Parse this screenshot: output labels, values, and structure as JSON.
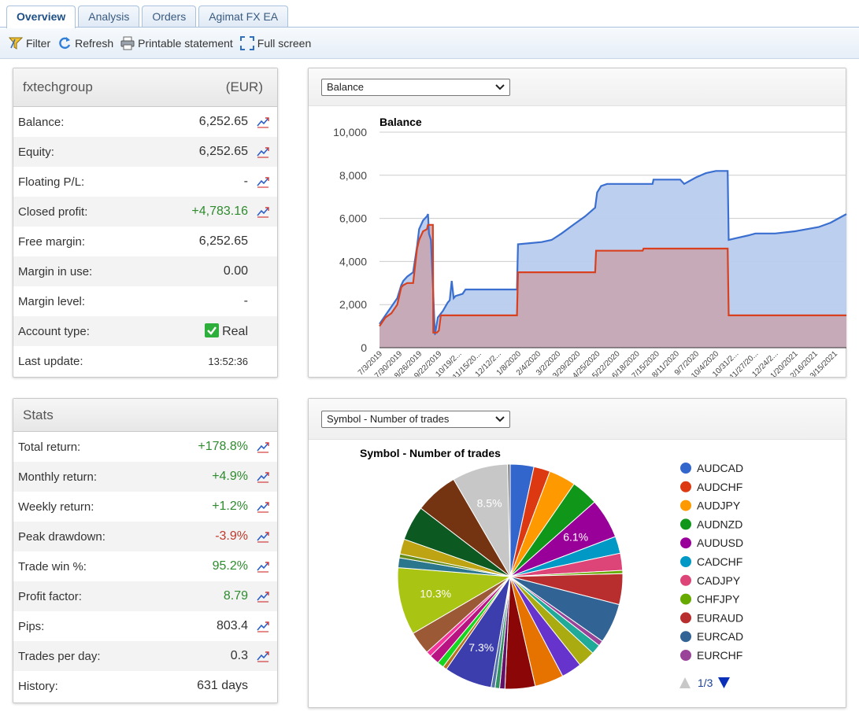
{
  "tabs": [
    "Overview",
    "Analysis",
    "Orders",
    "Agimat FX EA"
  ],
  "toolbar": {
    "filter": "Filter",
    "refresh": "Refresh",
    "print": "Printable statement",
    "fullscreen": "Full screen"
  },
  "account": {
    "name": "fxtechgroup",
    "currency": "(EUR)",
    "rows": [
      {
        "label": "Balance:",
        "value": "6,252.65"
      },
      {
        "label": "Equity:",
        "value": "6,252.65"
      },
      {
        "label": "Floating P/L:",
        "value": "-"
      },
      {
        "label": "Closed profit:",
        "value": "+4,783.16"
      },
      {
        "label": "Free margin:",
        "value": "6,252.65"
      },
      {
        "label": "Margin in use:",
        "value": "0.00"
      },
      {
        "label": "Margin level:",
        "value": "-"
      },
      {
        "label": "Account type:",
        "value": "Real"
      },
      {
        "label": "Last update:",
        "value": "13:52:36"
      }
    ]
  },
  "stats": {
    "title": "Stats",
    "rows": [
      {
        "label": "Total return:",
        "value": "+178.8%"
      },
      {
        "label": "Monthly return:",
        "value": "+4.9%"
      },
      {
        "label": "Weekly return:",
        "value": "+1.2%"
      },
      {
        "label": "Peak drawdown:",
        "value": "-3.9%"
      },
      {
        "label": "Trade win %:",
        "value": "95.2%"
      },
      {
        "label": "Profit factor:",
        "value": "8.79"
      },
      {
        "label": "Pips:",
        "value": "803.4"
      },
      {
        "label": "Trades per day:",
        "value": "0.3"
      },
      {
        "label": "History:",
        "value": "631 days"
      }
    ]
  },
  "balance_select": "Balance",
  "pie_select": "Symbol - Number of trades",
  "pager": "1/3",
  "colors": {
    "balance_line": "#3a6fd0",
    "balance_fill": "#b9ccee",
    "profit_line": "#d9401f",
    "profit_fill": "#c9a3ad",
    "positive": "#2e8b2e",
    "negative": "#c0392b"
  },
  "chart_data": [
    {
      "type": "area",
      "title": "Balance",
      "ylim": [
        0,
        10000
      ],
      "yticks": [
        "0",
        "2,000",
        "4,000",
        "6,000",
        "8,000",
        "10,000"
      ],
      "x_tick_labels": [
        "7/3/2019",
        "7/30/2019",
        "8/26/2019",
        "9/22/2019",
        "10/19/2...",
        "11/15/20...",
        "12/12/2...",
        "1/8/2020",
        "2/4/2020",
        "3/2/2020",
        "3/29/2020",
        "4/25/2020",
        "5/22/2020",
        "6/18/2020",
        "7/15/2020",
        "8/11/2020",
        "9/7/2020",
        "10/4/2020",
        "10/31/2...",
        "11/27/20...",
        "12/24/2...",
        "1/20/2021",
        "2/16/2021",
        "3/15/2021"
      ],
      "series": [
        {
          "values": [
            [
              0,
              1100
            ],
            [
              0.3,
              1500
            ],
            [
              0.6,
              1900
            ],
            [
              0.9,
              2300
            ],
            [
              1.1,
              2900
            ],
            [
              1.2,
              3100
            ],
            [
              1.4,
              3300
            ],
            [
              1.7,
              3500
            ],
            [
              1.9,
              4700
            ],
            [
              2.0,
              5500
            ],
            [
              2.2,
              5900
            ],
            [
              2.4,
              6100
            ],
            [
              2.45,
              6200
            ],
            [
              2.5,
              5300
            ],
            [
              2.6,
              5000
            ],
            [
              2.7,
              2900
            ],
            [
              2.8,
              600
            ],
            [
              2.95,
              1400
            ],
            [
              3.2,
              1700
            ],
            [
              3.45,
              2100
            ],
            [
              3.55,
              2200
            ],
            [
              3.65,
              3100
            ],
            [
              3.75,
              2300
            ],
            [
              3.85,
              2400
            ],
            [
              4.2,
              2500
            ],
            [
              4.35,
              2700
            ],
            [
              5.0,
              2700
            ],
            [
              6.0,
              2700
            ],
            [
              6.95,
              2700
            ],
            [
              7.0,
              4800
            ],
            [
              7.6,
              4850
            ],
            [
              8.2,
              4900
            ],
            [
              8.7,
              5000
            ],
            [
              9.2,
              5300
            ],
            [
              9.8,
              5700
            ],
            [
              10.4,
              6100
            ],
            [
              10.9,
              6500
            ],
            [
              11.0,
              7200
            ],
            [
              11.2,
              7500
            ],
            [
              11.5,
              7600
            ],
            [
              12.0,
              7600
            ],
            [
              13.0,
              7600
            ],
            [
              13.8,
              7600
            ],
            [
              13.85,
              7800
            ],
            [
              14.5,
              7800
            ],
            [
              15.2,
              7800
            ],
            [
              15.4,
              7600
            ],
            [
              15.6,
              7700
            ],
            [
              16.0,
              7900
            ],
            [
              16.5,
              8100
            ],
            [
              17.0,
              8200
            ],
            [
              17.6,
              8200
            ],
            [
              17.65,
              5000
            ],
            [
              18.1,
              5100
            ],
            [
              18.6,
              5200
            ],
            [
              19.0,
              5300
            ],
            [
              20.0,
              5300
            ],
            [
              21.0,
              5400
            ],
            [
              21.6,
              5500
            ],
            [
              22.2,
              5600
            ],
            [
              22.8,
              5800
            ],
            [
              23.2,
              6000
            ],
            [
              23.6,
              6200
            ]
          ]
        },
        {
          "values": [
            [
              0,
              1000
            ],
            [
              0.3,
              1400
            ],
            [
              0.6,
              1600
            ],
            [
              0.9,
              2000
            ],
            [
              1.1,
              2800
            ],
            [
              1.2,
              2900
            ],
            [
              1.4,
              3000
            ],
            [
              1.7,
              3000
            ],
            [
              1.9,
              4600
            ],
            [
              2.0,
              5000
            ],
            [
              2.2,
              5400
            ],
            [
              2.4,
              5500
            ],
            [
              2.45,
              5700
            ],
            [
              2.7,
              5700
            ],
            [
              2.72,
              700
            ],
            [
              2.9,
              700
            ],
            [
              3.0,
              800
            ],
            [
              3.1,
              1500
            ],
            [
              4.0,
              1500
            ],
            [
              5.0,
              1500
            ],
            [
              6.95,
              1500
            ],
            [
              7.0,
              3500
            ],
            [
              8.5,
              3500
            ],
            [
              9.9,
              3500
            ],
            [
              10.9,
              3500
            ],
            [
              10.95,
              4500
            ],
            [
              12.0,
              4500
            ],
            [
              13.3,
              4500
            ],
            [
              13.35,
              4600
            ],
            [
              14.5,
              4600
            ],
            [
              15.5,
              4600
            ],
            [
              17.6,
              4600
            ],
            [
              17.65,
              1500
            ],
            [
              19.0,
              1500
            ],
            [
              20.5,
              1500
            ],
            [
              22.0,
              1500
            ],
            [
              23.6,
              1500
            ]
          ]
        }
      ]
    },
    {
      "type": "pie",
      "title": "Symbol - Number of trades",
      "legend": [
        "AUDCAD",
        "AUDCHF",
        "AUDJPY",
        "AUDNZD",
        "AUDUSD",
        "CADCHF",
        "CADJPY",
        "CHFJPY",
        "EURAUD",
        "EURCAD",
        "EURCHF"
      ],
      "slice_labels": {
        "AUDUSD": "6.1%",
        "slice_20": "7.3%",
        "slice_26": "10.3%",
        "slice_31": "8.5%"
      },
      "values": [
        3.6,
        2.5,
        4.1,
        4.1,
        6.1,
        2.6,
        2.6,
        0.5,
        4.7,
        6.1,
        0.8,
        1.5,
        2.6,
        3.1,
        4.4,
        4.6,
        0.8,
        0.7,
        0.6,
        7.3,
        0.6,
        1.0,
        1.5,
        0.8,
        3.5,
        10.3,
        1.5,
        0.6,
        2.3,
        5.3,
        6.6,
        8.5,
        0.4
      ],
      "slice_colors": [
        "#3366cc",
        "#dc3912",
        "#ff9900",
        "#109618",
        "#990099",
        "#0099c6",
        "#dd4477",
        "#66aa00",
        "#b82e2e",
        "#316395",
        "#994499",
        "#22aa99",
        "#aaaa11",
        "#6633cc",
        "#e67300",
        "#8b0707",
        "#651067",
        "#329262",
        "#5574a6",
        "#3b3eac",
        "#b77322",
        "#16d620",
        "#b91383",
        "#f4359e",
        "#9c5935",
        "#a9c413",
        "#2a778d",
        "#668d1c",
        "#bea413",
        "#0c5922",
        "#743411",
        "#c7c7c7",
        "#7f7f7f"
      ]
    }
  ]
}
